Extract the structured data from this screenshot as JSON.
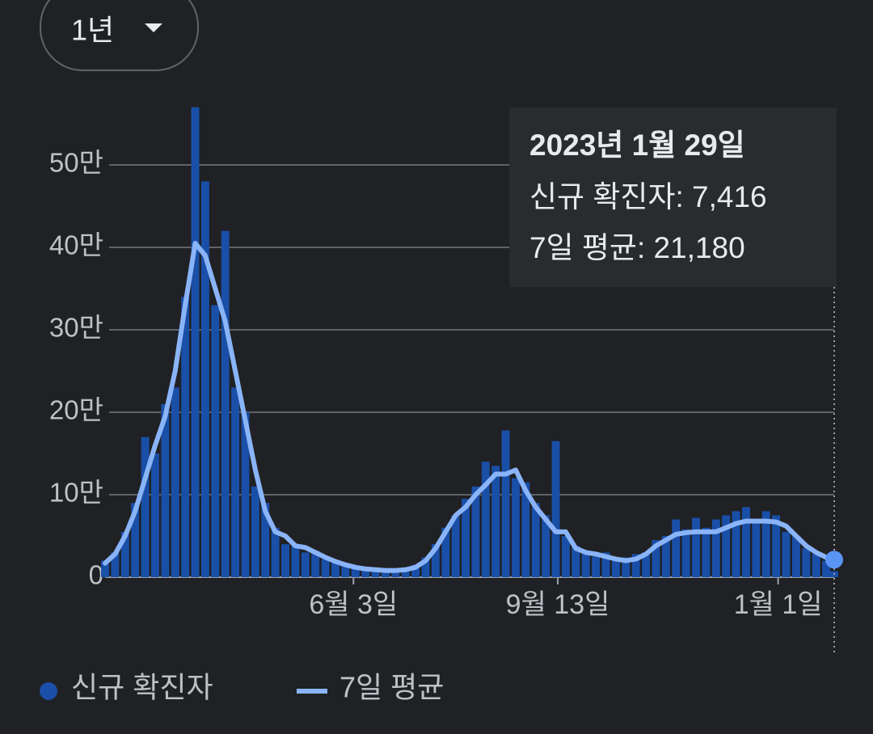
{
  "range_selector": "1년",
  "tooltip": {
    "title": "2023년 1월 29일",
    "lines": [
      "신규 확진자: 7,416",
      "7일 평균: 21,180"
    ]
  },
  "chart_data": {
    "type": "bar",
    "x": [
      0,
      5,
      10,
      15,
      20,
      25,
      30,
      35,
      40,
      45,
      50,
      55,
      60,
      65,
      70,
      75,
      80,
      85,
      90,
      95,
      100,
      105,
      110,
      115,
      120,
      125,
      130,
      135,
      140,
      145,
      150,
      155,
      160,
      165,
      170,
      175,
      180,
      185,
      190,
      195,
      200,
      205,
      210,
      215,
      220,
      225,
      230,
      235,
      240,
      245,
      250,
      255,
      260,
      265,
      270,
      275,
      280,
      285,
      290,
      295,
      300,
      305,
      310,
      315,
      320,
      325,
      330,
      335,
      340,
      345,
      350,
      355,
      360,
      364
    ],
    "xlim": [
      0,
      364
    ],
    "xticks": [
      {
        "value": 124,
        "label": "6월 3일"
      },
      {
        "value": 226,
        "label": "9월 13일"
      },
      {
        "value": 336,
        "label": "1월 1일"
      }
    ],
    "ylim": [
      0,
      570000
    ],
    "yticks": [
      0,
      {
        "value": 100000,
        "label": "10만"
      },
      {
        "value": 200000,
        "label": "20만"
      },
      {
        "value": 300000,
        "label": "30만"
      },
      {
        "value": 400000,
        "label": "40만"
      },
      {
        "value": 500000,
        "label": "50만"
      }
    ],
    "grid": true,
    "series": [
      {
        "name": "신규 확진자",
        "type": "bar",
        "color": "#1a4fa8",
        "values": [
          20000,
          30000,
          55000,
          90000,
          170000,
          150000,
          210000,
          230000,
          340000,
          570000,
          480000,
          330000,
          420000,
          230000,
          200000,
          110000,
          90000,
          60000,
          40000,
          38000,
          30000,
          32000,
          22000,
          18000,
          14000,
          12000,
          10000,
          9000,
          8000,
          7000,
          9000,
          15000,
          24000,
          40000,
          60000,
          75000,
          95000,
          110000,
          140000,
          135000,
          178000,
          120000,
          115000,
          90000,
          75000,
          165000,
          50000,
          38000,
          32000,
          25000,
          30000,
          20000,
          24000,
          28000,
          30000,
          45000,
          50000,
          70000,
          58000,
          72000,
          60000,
          70000,
          75000,
          80000,
          85000,
          70000,
          80000,
          75000,
          55000,
          50000,
          35000,
          28000,
          20000,
          7416
        ]
      },
      {
        "name": "7일 평균",
        "type": "line",
        "color": "#8ab4f8",
        "values": [
          17000,
          28000,
          50000,
          80000,
          120000,
          160000,
          195000,
          250000,
          330000,
          405000,
          390000,
          350000,
          310000,
          250000,
          190000,
          130000,
          80000,
          55000,
          50000,
          38000,
          36000,
          30000,
          24000,
          19000,
          15000,
          12000,
          10000,
          9000,
          8000,
          8000,
          9000,
          12000,
          20000,
          35000,
          55000,
          75000,
          85000,
          100000,
          112000,
          125000,
          125000,
          130000,
          105000,
          85000,
          70000,
          55000,
          55000,
          35000,
          30000,
          28000,
          25000,
          22000,
          20000,
          22000,
          28000,
          38000,
          45000,
          52000,
          54000,
          55000,
          55000,
          55000,
          60000,
          65000,
          68000,
          68000,
          68000,
          67000,
          62000,
          50000,
          38000,
          30000,
          24000,
          21180
        ]
      }
    ]
  }
}
